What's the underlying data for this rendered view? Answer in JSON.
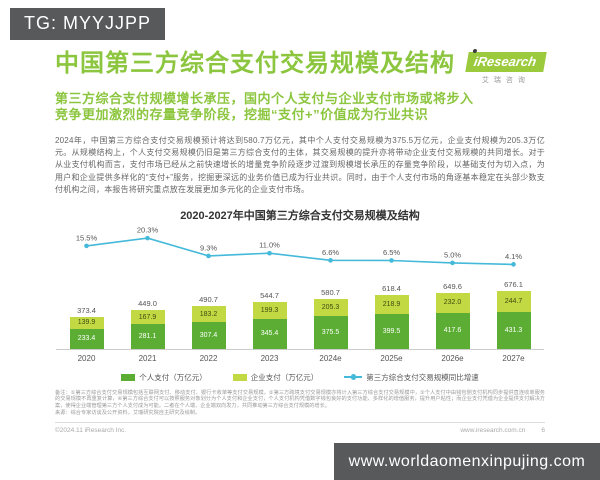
{
  "overlay": {
    "tg_badge": "TG: MYYJJPP",
    "watermark": "www.worldaomenxinpujing.com"
  },
  "header": {
    "title": "中国第三方综合支付交易规模及结构",
    "logo_name": "iResearch",
    "logo_caption": "艾瑞咨询",
    "subtitle_line1": "第三方综合支付规模增长承压，国内个人支付与企业支付市场或将步入",
    "subtitle_line2": "竞争更加激烈的存量竞争阶段，挖掘“支付+”价值成为行业共识"
  },
  "body": {
    "paragraph": "2024年，中国第三方综合支付交易规模预计将达到580.7万亿元，其中个人支付交易规模为375.5万亿元，企业支付规模为205.3万亿元。从规模结构上，个人支付交易规模仍旧是第三方综合支付的主体，其交易规模的提升亦将带动企业支付交易规模的共同增长。对于从业支付机构而言，支付市场已经从之前快速增长的增量竞争阶段逐步过渡到规模增长承压的存量竞争阶段，以基础支付为切入点，为用户和企业提供多样化的“支付+”服务，挖掘更深远的业务价值已成为行业共识。同时，由于个人支付市场的角逐基本稳定在头部少数支付机构之间，本报告将研究重点放在发展更加多元化的企业支付市场。"
  },
  "chart_data": {
    "type": "bar",
    "subtype": "stacked-bar-with-line",
    "title": "2020-2027年中国第三方综合支付交易规模及结构",
    "categories": [
      "2020",
      "2021",
      "2022",
      "2023",
      "2024e",
      "2025e",
      "2026e",
      "2027e"
    ],
    "series": [
      {
        "name": "个人支付",
        "unit": "万亿元",
        "stack": "bottom",
        "values": [
          233.4,
          281.1,
          307.4,
          345.4,
          375.5,
          399.5,
          417.6,
          431.3
        ]
      },
      {
        "name": "企业支付",
        "unit": "万亿元",
        "stack": "top",
        "values": [
          139.9,
          167.9,
          183.2,
          199.3,
          205.3,
          218.9,
          232.0,
          244.7
        ]
      }
    ],
    "totals": [
      373.4,
      449.0,
      490.7,
      544.7,
      580.7,
      618.4,
      649.6,
      676.1
    ],
    "growth": {
      "name": "第三方综合支付交易规模同比增速",
      "unit": "%",
      "values": [
        15.5,
        20.3,
        9.3,
        11.0,
        6.6,
        6.5,
        5.0,
        4.1
      ]
    },
    "legend": [
      "个人支付（万亿元）",
      "企业支付（万亿元）",
      "第三方综合支付交易规模同比增速"
    ],
    "colors": {
      "personal": "#5bae33",
      "enterprise": "#c3d943",
      "growth_line": "#45b9d9",
      "accent_green": "#8cc63f",
      "badge_gray": "#58595b"
    },
    "ylim": [
      0,
      700
    ],
    "grid": false,
    "legend_position": "bottom"
  },
  "footnote": {
    "note": "备注：①第三方综合支付交易规模包括互联网支付、移动支付、银行卡收单等支付交易规模，②第三方跨境支付交易规模亦将计入第三方综合支付交易规模中，③个人支付中由钱包侧支付机构同步提供直连收单服务的交易规模不再重复计算，④第三方综合支付可以按照服务对象划分为个人支付和企业支付，个人支付机构凭借数字钱包良好的支付功能、多样化的增值服务，提升用户粘性；而企业支付凭借为企业提供支付解决方案，使得企业端管理第三方个人支付成为可能。二者在个人端、企业端双向发力，共同推动第三方综合支付规模的增长。",
    "source": "来源：综合专家访谈及公开资料，艾瑞研究院自主研究及绘制。"
  },
  "footer": {
    "copyright": "©2024.11 iResearch Inc.",
    "website": "www.iresearch.com.cn",
    "page": "6"
  }
}
